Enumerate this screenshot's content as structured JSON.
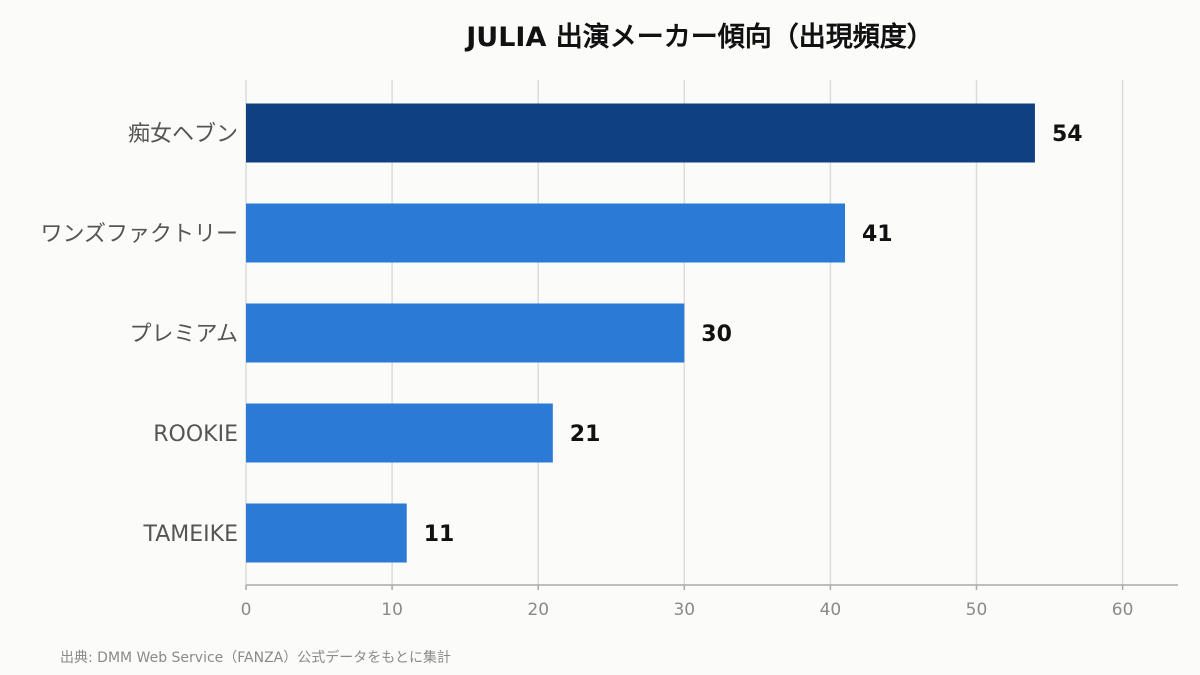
{
  "chart_data": {
    "type": "bar",
    "orientation": "horizontal",
    "title": "JULIA 出演メーカー傾向（出現頻度）",
    "categories": [
      "痴女ヘブン",
      "ワンズファクトリー",
      "プレミアム",
      "ROOKIE",
      "TAMEIKE"
    ],
    "values": [
      54,
      41,
      30,
      21,
      11
    ],
    "xlim": [
      0,
      64
    ],
    "ticks": [
      0,
      10,
      20,
      30,
      40,
      50,
      60
    ],
    "grid": true,
    "colors": {
      "highlight": "#0f4082",
      "default": "#2a7ad6"
    }
  },
  "source_note": "出典: DMM Web Service（FANZA）公式データをもとに集計"
}
